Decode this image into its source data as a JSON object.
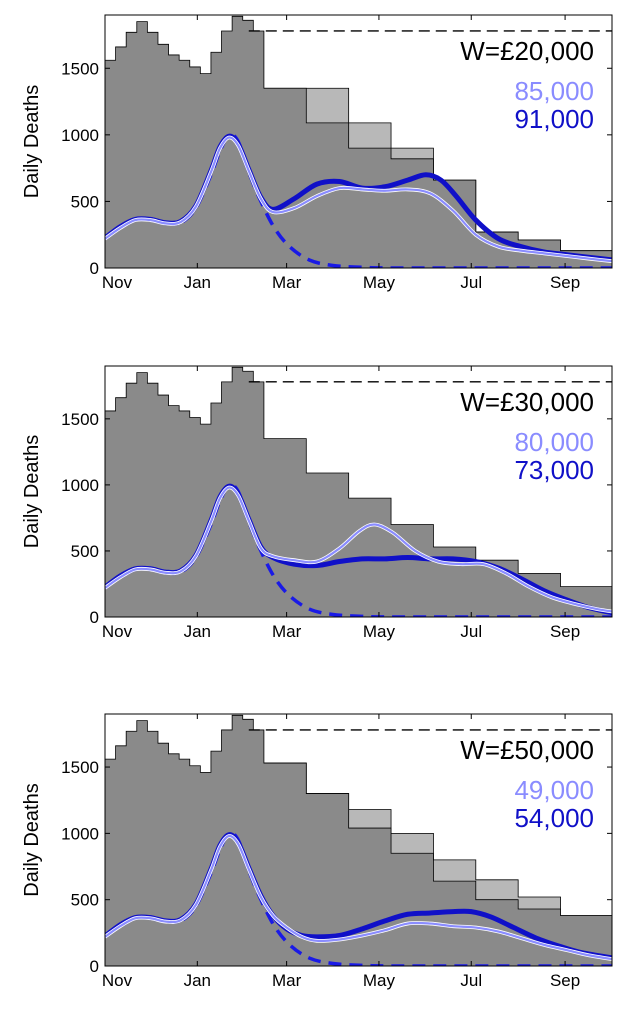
{
  "colors": {
    "background": "#ffffff",
    "stringency_fill": "#8a8a8a",
    "stringency_alt_fill": "#b8b8b8",
    "threshold_line": "#000000",
    "series_light": "#8a8cff",
    "series_dark": "#1010c8",
    "series_dashed": "#1a1ae6"
  },
  "chart_data": [
    {
      "type": "line",
      "ylabel": "Daily Deaths",
      "x_tick_labels": [
        "Nov",
        "Jan",
        "Mar",
        "May",
        "Jul",
        "Sep"
      ],
      "x_tick_days": [
        0,
        61,
        120,
        181,
        242,
        304
      ],
      "ylim": [
        0,
        1900
      ],
      "y_ticks": [
        0,
        500,
        1000,
        1500
      ],
      "xlim": [
        0,
        335
      ],
      "threshold": {
        "value": 1780,
        "x_start": 95
      },
      "annotation": {
        "label": "W=£20,000",
        "value_light": "85,000",
        "value_dark": "91,000"
      },
      "steps": [
        [
          0,
          1560
        ],
        [
          7,
          1660
        ],
        [
          14,
          1770
        ],
        [
          21,
          1850
        ],
        [
          28,
          1770
        ],
        [
          35,
          1680
        ],
        [
          42,
          1600
        ],
        [
          49,
          1560
        ],
        [
          56,
          1510
        ],
        [
          63,
          1460
        ],
        [
          70,
          1620
        ],
        [
          77,
          1780
        ],
        [
          84,
          1890
        ],
        [
          91,
          1860
        ],
        [
          98,
          1780
        ],
        [
          105,
          1350
        ],
        [
          133,
          1090
        ],
        [
          161,
          900
        ],
        [
          189,
          820
        ],
        [
          217,
          660
        ],
        [
          245,
          270
        ],
        [
          273,
          210
        ],
        [
          301,
          130
        ],
        [
          336,
          130
        ]
      ],
      "alt_steps": [
        [
          105,
          1350
        ],
        [
          133,
          1350
        ],
        [
          161,
          1090
        ],
        [
          189,
          900
        ],
        [
          217,
          660
        ],
        [
          245,
          270
        ],
        [
          273,
          210
        ],
        [
          301,
          130
        ],
        [
          336,
          130
        ]
      ],
      "dashed": [
        [
          0,
          230
        ],
        [
          10,
          300
        ],
        [
          20,
          360
        ],
        [
          30,
          370
        ],
        [
          40,
          340
        ],
        [
          50,
          340
        ],
        [
          60,
          450
        ],
        [
          70,
          700
        ],
        [
          76,
          880
        ],
        [
          82,
          1000
        ],
        [
          88,
          950
        ],
        [
          95,
          720
        ],
        [
          103,
          500
        ],
        [
          112,
          300
        ],
        [
          122,
          160
        ],
        [
          135,
          60
        ],
        [
          150,
          20
        ],
        [
          170,
          5
        ],
        [
          200,
          0
        ],
        [
          336,
          0
        ]
      ],
      "series_light": [
        [
          0,
          220
        ],
        [
          10,
          300
        ],
        [
          20,
          360
        ],
        [
          30,
          360
        ],
        [
          40,
          335
        ],
        [
          50,
          345
        ],
        [
          60,
          460
        ],
        [
          70,
          720
        ],
        [
          76,
          900
        ],
        [
          82,
          980
        ],
        [
          88,
          920
        ],
        [
          95,
          730
        ],
        [
          103,
          520
        ],
        [
          111,
          420
        ],
        [
          125,
          450
        ],
        [
          140,
          540
        ],
        [
          155,
          600
        ],
        [
          170,
          590
        ],
        [
          185,
          580
        ],
        [
          200,
          590
        ],
        [
          215,
          560
        ],
        [
          230,
          430
        ],
        [
          245,
          250
        ],
        [
          260,
          160
        ],
        [
          275,
          130
        ],
        [
          290,
          110
        ],
        [
          305,
          90
        ],
        [
          320,
          70
        ],
        [
          336,
          50
        ]
      ],
      "series_dark": [
        [
          0,
          225
        ],
        [
          10,
          310
        ],
        [
          20,
          365
        ],
        [
          30,
          365
        ],
        [
          40,
          340
        ],
        [
          50,
          350
        ],
        [
          60,
          465
        ],
        [
          70,
          730
        ],
        [
          76,
          910
        ],
        [
          82,
          990
        ],
        [
          88,
          930
        ],
        [
          95,
          740
        ],
        [
          103,
          530
        ],
        [
          111,
          440
        ],
        [
          125,
          520
        ],
        [
          140,
          630
        ],
        [
          155,
          650
        ],
        [
          170,
          600
        ],
        [
          185,
          610
        ],
        [
          200,
          660
        ],
        [
          212,
          700
        ],
        [
          222,
          660
        ],
        [
          232,
          540
        ],
        [
          245,
          360
        ],
        [
          260,
          220
        ],
        [
          275,
          160
        ],
        [
          290,
          120
        ],
        [
          305,
          100
        ],
        [
          320,
          80
        ],
        [
          336,
          60
        ]
      ]
    },
    {
      "type": "line",
      "ylabel": "Daily Deaths",
      "x_tick_labels": [
        "Nov",
        "Jan",
        "Mar",
        "May",
        "Jul",
        "Sep"
      ],
      "x_tick_days": [
        0,
        61,
        120,
        181,
        242,
        304
      ],
      "ylim": [
        0,
        1900
      ],
      "y_ticks": [
        0,
        500,
        1000,
        1500
      ],
      "xlim": [
        0,
        335
      ],
      "threshold": {
        "value": 1780,
        "x_start": 95
      },
      "annotation": {
        "label": "W=£30,000",
        "value_light": "80,000",
        "value_dark": "73,000"
      },
      "steps": [
        [
          0,
          1560
        ],
        [
          7,
          1660
        ],
        [
          14,
          1770
        ],
        [
          21,
          1850
        ],
        [
          28,
          1770
        ],
        [
          35,
          1680
        ],
        [
          42,
          1600
        ],
        [
          49,
          1560
        ],
        [
          56,
          1510
        ],
        [
          63,
          1460
        ],
        [
          70,
          1620
        ],
        [
          77,
          1780
        ],
        [
          84,
          1890
        ],
        [
          91,
          1860
        ],
        [
          98,
          1780
        ],
        [
          105,
          1350
        ],
        [
          133,
          1090
        ],
        [
          161,
          900
        ],
        [
          189,
          700
        ],
        [
          217,
          530
        ],
        [
          245,
          430
        ],
        [
          273,
          330
        ],
        [
          301,
          230
        ],
        [
          336,
          230
        ]
      ],
      "alt_steps": [],
      "dashed": [
        [
          0,
          230
        ],
        [
          10,
          300
        ],
        [
          20,
          360
        ],
        [
          30,
          370
        ],
        [
          40,
          340
        ],
        [
          50,
          340
        ],
        [
          60,
          450
        ],
        [
          70,
          700
        ],
        [
          76,
          880
        ],
        [
          82,
          1000
        ],
        [
          88,
          950
        ],
        [
          95,
          720
        ],
        [
          103,
          500
        ],
        [
          112,
          300
        ],
        [
          122,
          160
        ],
        [
          135,
          60
        ],
        [
          150,
          20
        ],
        [
          170,
          5
        ],
        [
          200,
          0
        ],
        [
          336,
          0
        ]
      ],
      "series_light": [
        [
          0,
          220
        ],
        [
          10,
          300
        ],
        [
          20,
          360
        ],
        [
          30,
          360
        ],
        [
          40,
          335
        ],
        [
          50,
          345
        ],
        [
          60,
          460
        ],
        [
          70,
          720
        ],
        [
          76,
          900
        ],
        [
          82,
          980
        ],
        [
          88,
          920
        ],
        [
          95,
          730
        ],
        [
          103,
          520
        ],
        [
          111,
          460
        ],
        [
          125,
          430
        ],
        [
          140,
          420
        ],
        [
          155,
          520
        ],
        [
          168,
          650
        ],
        [
          178,
          700
        ],
        [
          190,
          640
        ],
        [
          205,
          500
        ],
        [
          220,
          420
        ],
        [
          235,
          400
        ],
        [
          250,
          400
        ],
        [
          265,
          330
        ],
        [
          280,
          230
        ],
        [
          295,
          150
        ],
        [
          310,
          100
        ],
        [
          325,
          60
        ],
        [
          336,
          40
        ]
      ],
      "series_dark": [
        [
          0,
          225
        ],
        [
          10,
          310
        ],
        [
          20,
          365
        ],
        [
          30,
          365
        ],
        [
          40,
          340
        ],
        [
          50,
          350
        ],
        [
          60,
          465
        ],
        [
          70,
          730
        ],
        [
          76,
          910
        ],
        [
          82,
          990
        ],
        [
          88,
          930
        ],
        [
          95,
          740
        ],
        [
          103,
          530
        ],
        [
          111,
          450
        ],
        [
          125,
          400
        ],
        [
          140,
          390
        ],
        [
          155,
          420
        ],
        [
          170,
          440
        ],
        [
          185,
          440
        ],
        [
          200,
          450
        ],
        [
          215,
          440
        ],
        [
          230,
          440
        ],
        [
          245,
          420
        ],
        [
          260,
          370
        ],
        [
          275,
          290
        ],
        [
          290,
          200
        ],
        [
          305,
          130
        ],
        [
          320,
          70
        ],
        [
          336,
          30
        ]
      ]
    },
    {
      "type": "line",
      "ylabel": "Daily Deaths",
      "x_tick_labels": [
        "Nov",
        "Jan",
        "Mar",
        "May",
        "Jul",
        "Sep"
      ],
      "x_tick_days": [
        0,
        61,
        120,
        181,
        242,
        304
      ],
      "ylim": [
        0,
        1900
      ],
      "y_ticks": [
        0,
        500,
        1000,
        1500
      ],
      "xlim": [
        0,
        335
      ],
      "threshold": {
        "value": 1780,
        "x_start": 95
      },
      "annotation": {
        "label": "W=£50,000",
        "value_light": "49,000",
        "value_dark": "54,000"
      },
      "steps": [
        [
          0,
          1560
        ],
        [
          7,
          1660
        ],
        [
          14,
          1770
        ],
        [
          21,
          1850
        ],
        [
          28,
          1770
        ],
        [
          35,
          1680
        ],
        [
          42,
          1600
        ],
        [
          49,
          1560
        ],
        [
          56,
          1510
        ],
        [
          63,
          1460
        ],
        [
          70,
          1620
        ],
        [
          77,
          1780
        ],
        [
          84,
          1890
        ],
        [
          91,
          1860
        ],
        [
          98,
          1780
        ],
        [
          105,
          1530
        ],
        [
          133,
          1300
        ],
        [
          161,
          1040
        ],
        [
          189,
          850
        ],
        [
          217,
          640
        ],
        [
          245,
          500
        ],
        [
          273,
          430
        ],
        [
          301,
          380
        ],
        [
          336,
          380
        ]
      ],
      "alt_steps": [
        [
          105,
          1530
        ],
        [
          133,
          1300
        ],
        [
          161,
          1180
        ],
        [
          189,
          1000
        ],
        [
          217,
          800
        ],
        [
          245,
          650
        ],
        [
          273,
          520
        ],
        [
          301,
          380
        ],
        [
          336,
          380
        ]
      ],
      "dashed": [
        [
          0,
          230
        ],
        [
          10,
          300
        ],
        [
          20,
          360
        ],
        [
          30,
          370
        ],
        [
          40,
          340
        ],
        [
          50,
          340
        ],
        [
          60,
          450
        ],
        [
          70,
          700
        ],
        [
          76,
          880
        ],
        [
          82,
          1000
        ],
        [
          88,
          950
        ],
        [
          95,
          720
        ],
        [
          103,
          500
        ],
        [
          112,
          300
        ],
        [
          122,
          160
        ],
        [
          135,
          60
        ],
        [
          150,
          20
        ],
        [
          170,
          5
        ],
        [
          200,
          0
        ],
        [
          336,
          0
        ]
      ],
      "series_light": [
        [
          0,
          220
        ],
        [
          10,
          300
        ],
        [
          20,
          360
        ],
        [
          30,
          360
        ],
        [
          40,
          335
        ],
        [
          50,
          345
        ],
        [
          60,
          460
        ],
        [
          70,
          720
        ],
        [
          76,
          900
        ],
        [
          82,
          980
        ],
        [
          88,
          920
        ],
        [
          95,
          730
        ],
        [
          103,
          520
        ],
        [
          111,
          380
        ],
        [
          120,
          290
        ],
        [
          130,
          220
        ],
        [
          140,
          190
        ],
        [
          155,
          200
        ],
        [
          170,
          230
        ],
        [
          185,
          270
        ],
        [
          200,
          320
        ],
        [
          215,
          320
        ],
        [
          230,
          300
        ],
        [
          245,
          290
        ],
        [
          260,
          260
        ],
        [
          275,
          210
        ],
        [
          290,
          160
        ],
        [
          305,
          120
        ],
        [
          320,
          80
        ],
        [
          336,
          50
        ]
      ],
      "series_dark": [
        [
          0,
          225
        ],
        [
          10,
          310
        ],
        [
          20,
          365
        ],
        [
          30,
          365
        ],
        [
          40,
          340
        ],
        [
          50,
          350
        ],
        [
          60,
          465
        ],
        [
          70,
          730
        ],
        [
          76,
          910
        ],
        [
          82,
          990
        ],
        [
          88,
          930
        ],
        [
          95,
          740
        ],
        [
          103,
          530
        ],
        [
          111,
          380
        ],
        [
          120,
          280
        ],
        [
          130,
          230
        ],
        [
          140,
          220
        ],
        [
          155,
          230
        ],
        [
          170,
          280
        ],
        [
          185,
          340
        ],
        [
          200,
          390
        ],
        [
          215,
          400
        ],
        [
          230,
          410
        ],
        [
          242,
          410
        ],
        [
          255,
          370
        ],
        [
          270,
          290
        ],
        [
          285,
          210
        ],
        [
          300,
          150
        ],
        [
          315,
          100
        ],
        [
          336,
          60
        ]
      ]
    }
  ]
}
